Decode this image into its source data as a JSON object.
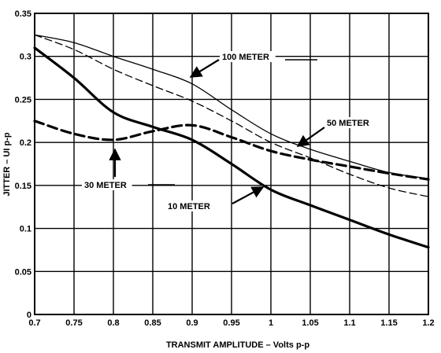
{
  "chart_data": {
    "type": "line",
    "title": "",
    "xlabel": "TRANSMIT AMPLITUDE – Volts p-p",
    "ylabel": "JITTER – UI p-p",
    "xlim": [
      0.7,
      1.2
    ],
    "ylim": [
      0,
      0.35
    ],
    "grid": true,
    "x_ticks": [
      "0.7",
      "0.75",
      "0.8",
      "0.85",
      "0.9",
      "0.95",
      "1",
      "1.05",
      "1.1",
      "1.15",
      "1.2"
    ],
    "y_ticks": [
      "0",
      "0.05",
      "0.1",
      "0.15",
      "0.2",
      "0.25",
      "0.3",
      "0.35"
    ],
    "series": [
      {
        "name": "10 METER",
        "style": "thick-solid",
        "x": [
          0.7,
          0.75,
          0.8,
          0.85,
          0.9,
          0.95,
          1.0,
          1.05,
          1.1,
          1.15,
          1.2
        ],
        "y": [
          0.31,
          0.275,
          0.235,
          0.218,
          0.203,
          0.175,
          0.145,
          0.127,
          0.11,
          0.093,
          0.078
        ]
      },
      {
        "name": "30 METER",
        "style": "thick-dashed",
        "x": [
          0.7,
          0.75,
          0.8,
          0.85,
          0.9,
          0.95,
          1.0,
          1.05,
          1.1,
          1.15,
          1.2
        ],
        "y": [
          0.225,
          0.21,
          0.203,
          0.213,
          0.22,
          0.206,
          0.19,
          0.18,
          0.172,
          0.164,
          0.157
        ]
      },
      {
        "name": "50 METER",
        "style": "thin-dashed",
        "x": [
          0.7,
          0.75,
          0.8,
          0.85,
          0.9,
          0.95,
          1.0,
          1.05,
          1.1,
          1.15,
          1.2
        ],
        "y": [
          0.325,
          0.308,
          0.285,
          0.266,
          0.248,
          0.225,
          0.2,
          0.182,
          0.163,
          0.147,
          0.137
        ]
      },
      {
        "name": "100 METER",
        "style": "thin-solid",
        "x": [
          0.7,
          0.75,
          0.8,
          0.85,
          0.9,
          0.95,
          1.0,
          1.05,
          1.1,
          1.15,
          1.2
        ],
        "y": [
          0.325,
          0.316,
          0.3,
          0.285,
          0.268,
          0.238,
          0.21,
          0.192,
          0.178,
          0.165,
          0.158
        ]
      }
    ],
    "annotations": [
      {
        "text": "100 METER",
        "target_series": "100 METER"
      },
      {
        "text": "50 METER",
        "target_series": "50 METER"
      },
      {
        "text": "30 METER",
        "target_series": "30 METER"
      },
      {
        "text": "10 METER",
        "target_series": "10 METER"
      }
    ]
  }
}
